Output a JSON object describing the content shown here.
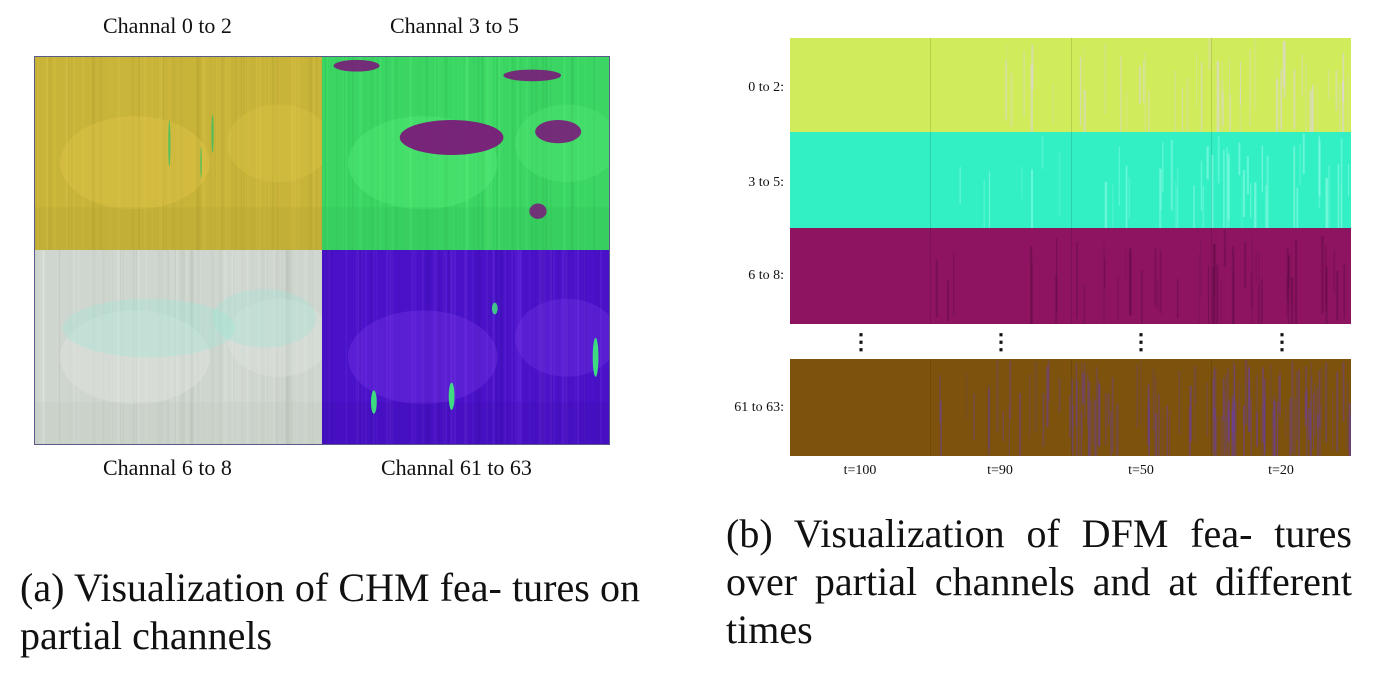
{
  "panel_a": {
    "labels": {
      "top_left": "Channal 0 to 2",
      "top_right": "Channal 3 to 5",
      "bottom_left": "Channal 6 to 8",
      "bottom_right": "Channal 61 to 63"
    },
    "colors": {
      "top_left_base": "#c9b43a",
      "top_left_dark": "#a79a2c",
      "top_left_light": "#e2c94a",
      "top_right_base": "#3ad562",
      "top_right_dark": "#2fb551",
      "top_right_accent": "#7a1a7a",
      "bottom_left_base": "#cfd6cf",
      "bottom_left_accent": "#9de8d6",
      "bottom_right_base": "#4a12c8",
      "bottom_right_light": "#7a3ae8",
      "bottom_right_accent": "#3cf078"
    },
    "caption": "(a) Visualization of CHM fea- tures on partial channels"
  },
  "panel_b": {
    "row_labels": [
      "0 to 2:",
      "3 to 5:",
      "6 to 8:",
      "61 to 63:"
    ],
    "time_labels": [
      "t=100",
      "t=90",
      "t=50",
      "t=20"
    ],
    "row_colors": [
      "#d0ec5a",
      "#33f0c4",
      "#8e1462",
      "#7c520c"
    ],
    "row_overlay_colors": [
      "#e0d0ff",
      "#a8fff0",
      "#5a0a40",
      "#6a3cb0"
    ],
    "vdots": "⋮",
    "caption": "(b) Visualization of DFM fea- tures over partial channels and at different times"
  }
}
